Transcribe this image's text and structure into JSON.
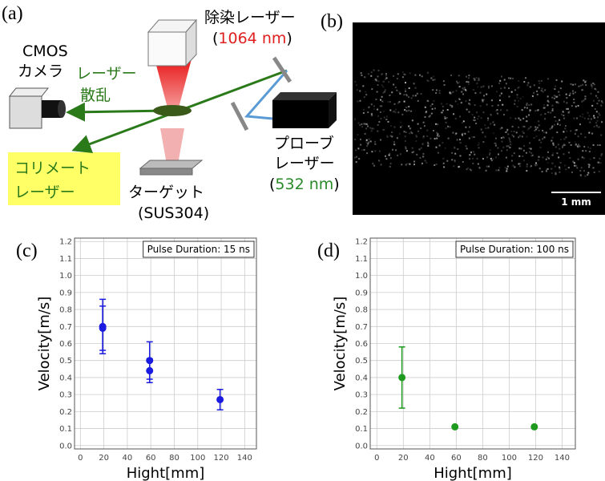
{
  "panel_labels": [
    "(a)",
    "(b)",
    "(c)",
    "(d)"
  ],
  "diagram": {
    "decon_laser": {
      "label": "除染レーザー",
      "wavelength_parts": [
        "(",
        "1064 nm",
        ")"
      ]
    },
    "camera": [
      "CMOS",
      "カメラ"
    ],
    "scatter": [
      "レーザー",
      "散乱"
    ],
    "collimated": [
      "コリメート",
      "レーザー"
    ],
    "target": [
      "ターゲット",
      "(SUS304)"
    ],
    "probe_laser": {
      "label": [
        "プローブ",
        "レーザー"
      ],
      "wavelength_parts": [
        "(",
        "532 nm",
        ")"
      ]
    }
  },
  "image": {
    "scale_bar": "1 mm"
  },
  "chart_data": [
    {
      "type": "scatter",
      "annotation": "Pulse Duration: 15 ns",
      "xlabel": "Hight[mm]",
      "ylabel": "Velocity[m/s]",
      "xlim": [
        -5,
        150
      ],
      "ylim": [
        -0.02,
        1.22
      ],
      "xticks": [
        0,
        20,
        40,
        60,
        80,
        100,
        120,
        140
      ],
      "yticks": [
        {
          "value": 0,
          "label": "0.0"
        },
        0.1,
        0.2,
        0.3,
        0.4,
        0.5,
        0.6,
        0.7,
        0.8,
        0.9,
        {
          "value": 1,
          "label": "1.0"
        },
        1.1,
        1.2
      ],
      "grid": true,
      "series": [
        {
          "color": "#1a1ae0",
          "x": [
            19,
            19,
            59,
            59,
            119
          ],
          "values": [
            0.7,
            0.69,
            0.5,
            0.44,
            0.27
          ],
          "errors": [
            0.16,
            0.13,
            0.11,
            0.07,
            0.06
          ]
        }
      ]
    },
    {
      "type": "scatter",
      "annotation": "Pulse Duration: 100 ns",
      "xlabel": "Hight[mm]",
      "ylabel": "Velocity[m/s]",
      "xlim": [
        -5,
        150
      ],
      "ylim": [
        -0.02,
        1.22
      ],
      "xticks": [
        0,
        20,
        40,
        60,
        80,
        100,
        120,
        140
      ],
      "yticks": [
        {
          "value": 0,
          "label": "0.0"
        },
        0.1,
        0.2,
        0.3,
        0.4,
        0.5,
        0.6,
        0.7,
        0.8,
        0.9,
        {
          "value": 1,
          "label": "1.0"
        },
        1.1,
        1.2
      ],
      "grid": true,
      "series": [
        {
          "color": "#1e9a1e",
          "x": [
            19,
            59,
            119
          ],
          "values": [
            0.4,
            0.11,
            0.11
          ],
          "errors": [
            0.18,
            null,
            null
          ]
        }
      ]
    }
  ]
}
